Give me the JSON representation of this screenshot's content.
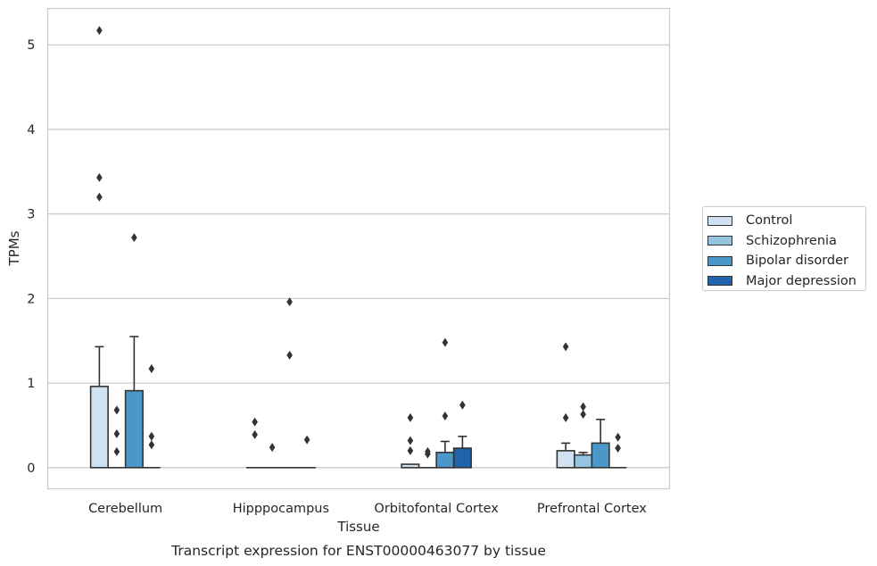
{
  "chart_data": {
    "type": "bar",
    "title": "",
    "caption": "Transcript expression for ENST00000463077 by tissue",
    "xlabel": "Tissue",
    "ylabel": "TPMs",
    "ylim": [
      -0.25,
      5.43
    ],
    "yticks": [
      0,
      1,
      2,
      3,
      4,
      5
    ],
    "grid": true,
    "legend_position": "right",
    "categories": [
      "Cerebellum",
      "Hipppocampus",
      "Orbitofontal Cortex",
      "Prefrontal Cortex"
    ],
    "series": [
      {
        "name": "Control",
        "color": "#d0e1f2",
        "values": [
          0.96,
          0.0,
          0.04,
          0.2
        ],
        "error_upper": [
          1.43,
          null,
          null,
          0.29
        ],
        "outliers": [
          [
            5.17,
            3.43,
            3.2
          ],
          [
            0.54,
            0.39
          ],
          [
            0.59,
            0.32,
            0.2
          ],
          [
            1.43,
            0.59
          ]
        ]
      },
      {
        "name": "Schizophrenia",
        "color": "#94c4df",
        "values": [
          0.0,
          0.0,
          0.0,
          0.15
        ],
        "error_upper": [
          null,
          null,
          null,
          0.18
        ],
        "outliers": [
          [
            0.68,
            0.4,
            0.19
          ],
          [
            0.24
          ],
          [
            0.19,
            0.16
          ],
          [
            0.72,
            0.63
          ]
        ]
      },
      {
        "name": "Bipolar disorder",
        "color": "#4a98c9",
        "values": [
          0.91,
          0.0,
          0.18,
          0.29
        ],
        "error_upper": [
          1.55,
          null,
          0.31,
          0.57
        ],
        "outliers": [
          [
            2.72
          ],
          [
            1.96,
            1.33
          ],
          [
            1.48,
            0.61
          ],
          []
        ]
      },
      {
        "name": "Major depression",
        "color": "#2163aa",
        "values": [
          0.0,
          0.0,
          0.23,
          0.0
        ],
        "error_upper": [
          null,
          null,
          0.37,
          null
        ],
        "outliers": [
          [
            1.17,
            0.37,
            0.27
          ],
          [
            0.33
          ],
          [
            0.74
          ],
          [
            0.36,
            0.23
          ]
        ]
      }
    ]
  }
}
